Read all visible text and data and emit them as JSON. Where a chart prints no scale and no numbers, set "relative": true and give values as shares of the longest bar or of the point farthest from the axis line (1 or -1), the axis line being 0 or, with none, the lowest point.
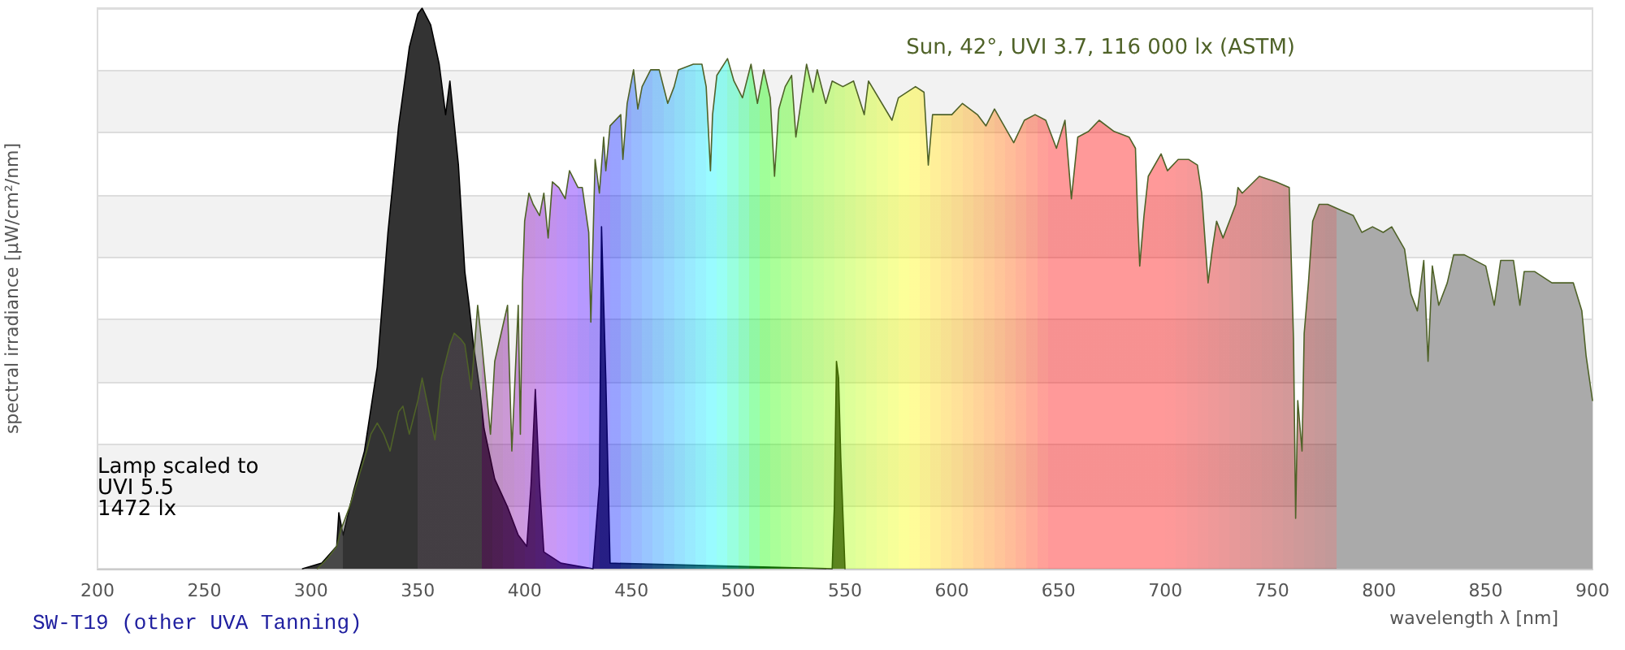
{
  "chart_data": {
    "type": "area",
    "title": "SW-T19 (other UVA Tanning)",
    "xlabel": "wavelength λ [nm]",
    "ylabel": "spectral irradiance [µW/cm²/nm]",
    "relative": true,
    "grid": "y",
    "xlim": [
      200,
      900
    ],
    "xticks": [
      200,
      250,
      300,
      350,
      400,
      450,
      500,
      550,
      600,
      650,
      700,
      750,
      800,
      850,
      900
    ],
    "series": [
      {
        "name": "Sun, 42°, UVI 3.7, 116 000 lx (ASTM)",
        "color": "#4f6228",
        "x": [
          303,
          308,
          312,
          314,
          318,
          322,
          326,
          328,
          331,
          334,
          337,
          341,
          343,
          346,
          350,
          352,
          358,
          361,
          365,
          367,
          370,
          372,
          375,
          378,
          380,
          384,
          386,
          392,
          394,
          397,
          398,
          399,
          400,
          402,
          404,
          407,
          409,
          411,
          413,
          416,
          419,
          421,
          425,
          427,
          430,
          431,
          433,
          435,
          437,
          438,
          440,
          445,
          446,
          448,
          451,
          453,
          455,
          459,
          463,
          467,
          470,
          472,
          479,
          483,
          485,
          487,
          488,
          490,
          495,
          498,
          502,
          506,
          509,
          512,
          515,
          517,
          519,
          522,
          525,
          527,
          532,
          535,
          537,
          541,
          544,
          549,
          554,
          559,
          561,
          572,
          575,
          583,
          587,
          589,
          591,
          600,
          605,
          612,
          616,
          620,
          629,
          634,
          639,
          644,
          649,
          653,
          656,
          659,
          664,
          669,
          676,
          683,
          686,
          687,
          688,
          690,
          692,
          698,
          701,
          706,
          711,
          715,
          717,
          720,
          722,
          724,
          727,
          730,
          733,
          734,
          736,
          744,
          752,
          758,
          760,
          761,
          762,
          764,
          765,
          767,
          769,
          772,
          776,
          782,
          788,
          792,
          797,
          802,
          806,
          812,
          815,
          818,
          821,
          823,
          825,
          828,
          832,
          835,
          840,
          850,
          854,
          857,
          863,
          866,
          868,
          873,
          881,
          891,
          895,
          897,
          900
        ],
        "values": [
          0,
          0.02,
          0.04,
          0.07,
          0.11,
          0.16,
          0.21,
          0.24,
          0.26,
          0.24,
          0.21,
          0.28,
          0.29,
          0.24,
          0.3,
          0.34,
          0.23,
          0.34,
          0.4,
          0.42,
          0.41,
          0.4,
          0.32,
          0.47,
          0.4,
          0.24,
          0.37,
          0.47,
          0.21,
          0.47,
          0.24,
          0.51,
          0.62,
          0.67,
          0.65,
          0.63,
          0.67,
          0.59,
          0.69,
          0.68,
          0.66,
          0.71,
          0.68,
          0.68,
          0.6,
          0.44,
          0.73,
          0.67,
          0.77,
          0.71,
          0.79,
          0.81,
          0.73,
          0.83,
          0.89,
          0.82,
          0.86,
          0.89,
          0.89,
          0.83,
          0.86,
          0.89,
          0.9,
          0.9,
          0.86,
          0.71,
          0.81,
          0.88,
          0.91,
          0.87,
          0.84,
          0.9,
          0.83,
          0.89,
          0.84,
          0.7,
          0.82,
          0.86,
          0.88,
          0.77,
          0.9,
          0.85,
          0.89,
          0.83,
          0.87,
          0.86,
          0.87,
          0.81,
          0.87,
          0.8,
          0.84,
          0.86,
          0.85,
          0.72,
          0.81,
          0.81,
          0.83,
          0.81,
          0.79,
          0.82,
          0.76,
          0.8,
          0.81,
          0.8,
          0.75,
          0.8,
          0.66,
          0.77,
          0.78,
          0.8,
          0.78,
          0.77,
          0.75,
          0.63,
          0.54,
          0.63,
          0.7,
          0.74,
          0.71,
          0.73,
          0.73,
          0.72,
          0.67,
          0.51,
          0.57,
          0.62,
          0.59,
          0.62,
          0.65,
          0.68,
          0.67,
          0.7,
          0.69,
          0.68,
          0.41,
          0.09,
          0.3,
          0.21,
          0.42,
          0.51,
          0.62,
          0.65,
          0.65,
          0.64,
          0.63,
          0.6,
          0.61,
          0.6,
          0.61,
          0.57,
          0.49,
          0.46,
          0.55,
          0.37,
          0.54,
          0.47,
          0.51,
          0.56,
          0.56,
          0.54,
          0.47,
          0.55,
          0.55,
          0.47,
          0.53,
          0.53,
          0.51,
          0.51,
          0.46,
          0.38,
          0.3
        ]
      },
      {
        "name": "Lamp scaled to\nUVI 5.5\n1472 lx",
        "color": "#000000",
        "x": [
          296,
          305,
          312,
          313,
          315,
          320,
          325,
          331,
          336,
          341,
          346,
          350,
          352,
          356,
          360,
          363,
          365,
          369,
          372,
          374,
          376,
          379,
          381,
          386,
          392,
          397,
          401,
          403,
          405,
          407,
          409,
          417,
          432,
          435,
          436,
          438,
          440,
          544,
          545,
          546,
          547,
          548,
          549,
          550
        ],
        "values": [
          0,
          0.01,
          0.04,
          0.1,
          0.06,
          0.14,
          0.21,
          0.36,
          0.6,
          0.79,
          0.93,
          0.99,
          1,
          0.97,
          0.9,
          0.81,
          0.87,
          0.72,
          0.53,
          0.47,
          0.4,
          0.32,
          0.25,
          0.16,
          0.11,
          0.06,
          0.04,
          0.15,
          0.32,
          0.15,
          0.03,
          0.01,
          0,
          0.15,
          0.61,
          0.34,
          0.01,
          0,
          0.11,
          0.37,
          0.34,
          0.2,
          0.1,
          0
        ]
      }
    ]
  }
}
